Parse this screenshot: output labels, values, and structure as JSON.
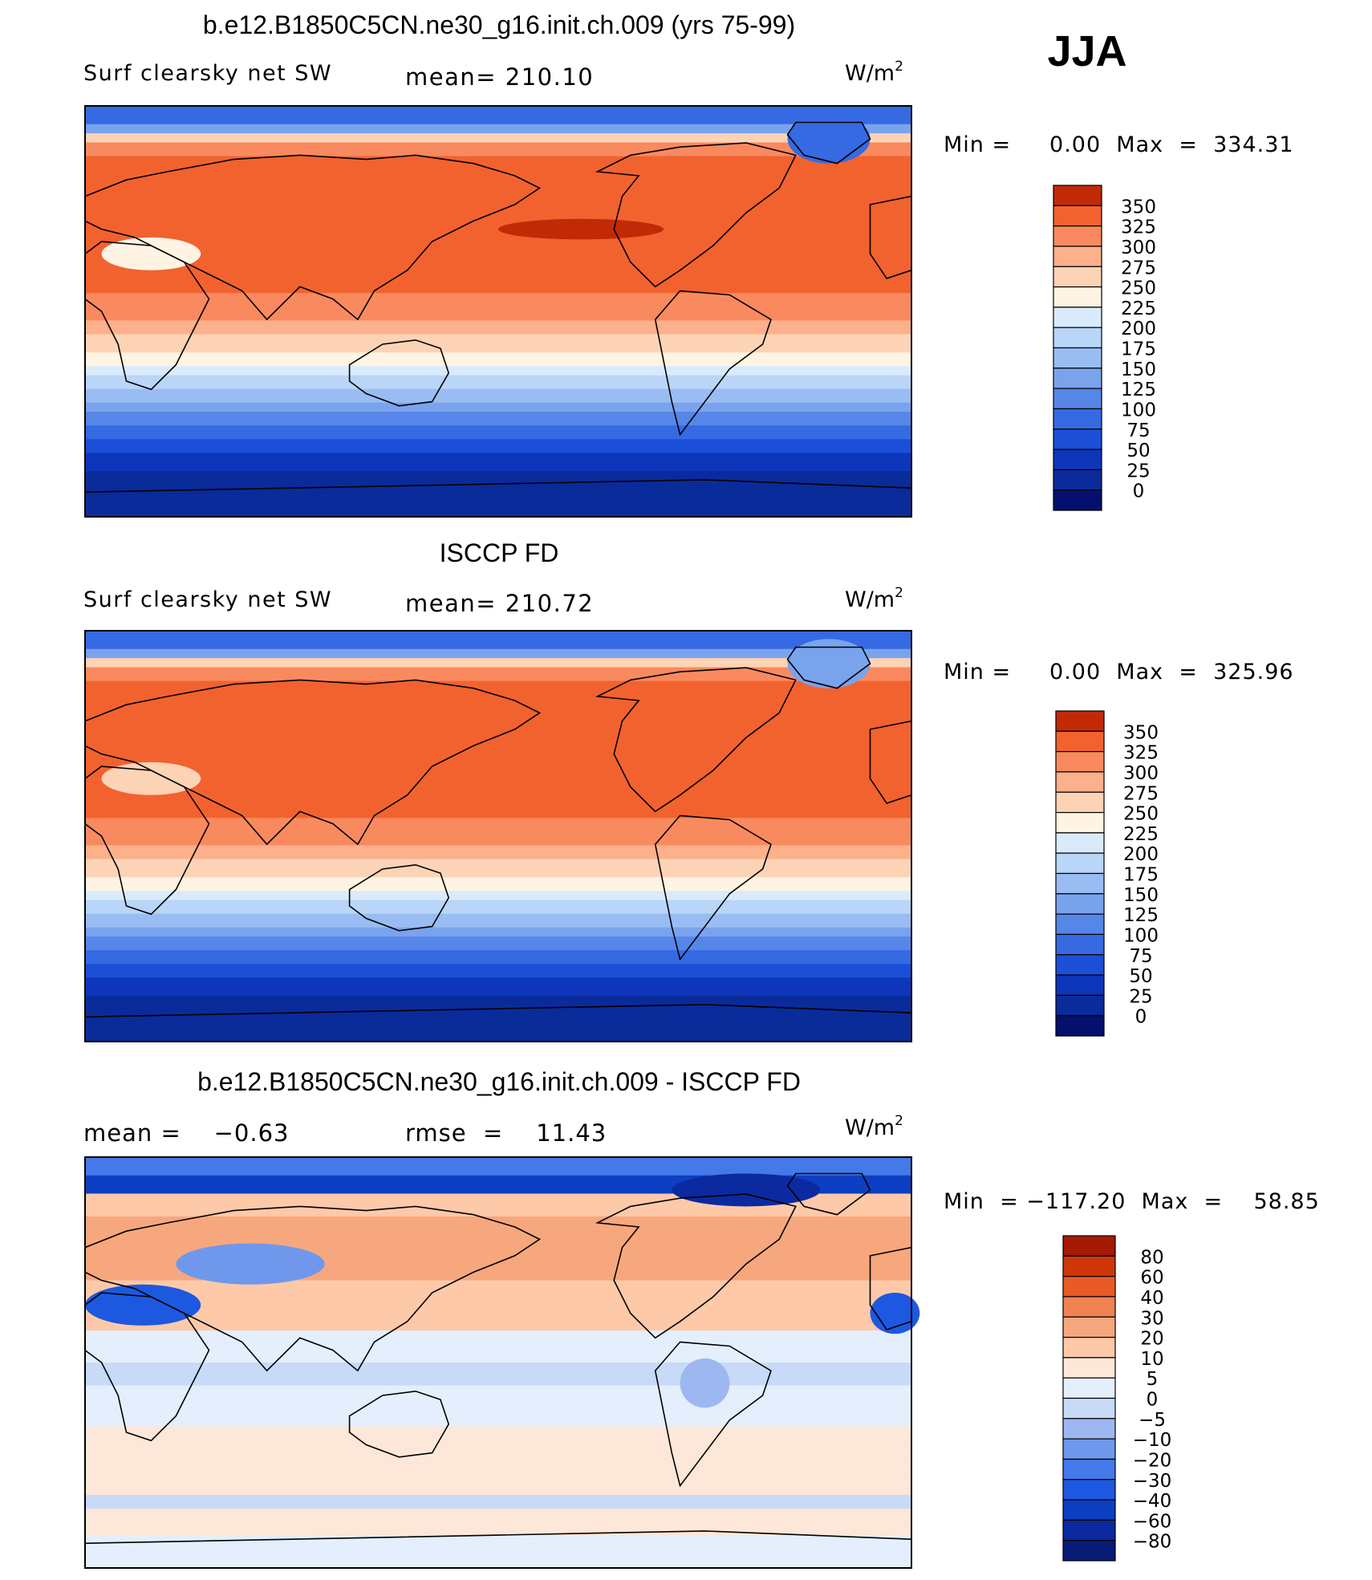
{
  "season": "JJA",
  "colors": {
    "warm": [
      "#fff3e3",
      "#fdd3b6",
      "#fcb08b",
      "#f98a5f",
      "#f2622f",
      "#e0400b",
      "#c22a06",
      "#9b1305",
      "#6f0000"
    ],
    "cool": [
      "#d9ebfb",
      "#b9d5f7",
      "#99bdf3",
      "#7aa3ee",
      "#5686e8",
      "#356ae3",
      "#1b4fd7",
      "#0d36bb",
      "#0a2b9a",
      "#050f6e"
    ],
    "diff": [
      "#081b76",
      "#0b2aa0",
      "#0d3fc3",
      "#1d58e1",
      "#4379e8",
      "#6f98ec",
      "#9db8f1",
      "#c7daf8",
      "#e4eefc",
      "#fde7d8",
      "#fdc9a9",
      "#f7a77d",
      "#f18352",
      "#e85b26",
      "#cf3708",
      "#a51a02",
      "#7d0000"
    ]
  },
  "chart_data": [
    {
      "type": "heatmap",
      "title": "b.e12.B1850C5CN.ne30_g16.init.ch.009 (yrs 75-99)",
      "left_label": "Surf clearsky net SW",
      "mean_text": "mean= 210.10",
      "units_text": "W/m",
      "units_sup": "2",
      "minmax_text": "Min =     0.00  Max  =  334.31",
      "min": 0.0,
      "max": 334.31,
      "mean": 210.1,
      "colorbar_levels": [
        "350",
        "325",
        "300",
        "275",
        "250",
        "225",
        "200",
        "175",
        "150",
        "125",
        "100",
        "75",
        "50",
        "25",
        "0"
      ],
      "colormap": "blue-white-red"
    },
    {
      "type": "heatmap",
      "title": "ISCCP FD",
      "left_label": "Surf clearsky net SW",
      "mean_text": "mean= 210.72",
      "units_text": "W/m",
      "units_sup": "2",
      "minmax_text": "Min =     0.00  Max  =  325.96",
      "min": 0.0,
      "max": 325.96,
      "mean": 210.72,
      "colorbar_levels": [
        "350",
        "325",
        "300",
        "275",
        "250",
        "225",
        "200",
        "175",
        "150",
        "125",
        "100",
        "75",
        "50",
        "25",
        "0"
      ],
      "colormap": "blue-white-red"
    },
    {
      "type": "heatmap",
      "title": "b.e12.B1850C5CN.ne30_g16.init.ch.009 - ISCCP FD",
      "left_label": "mean =    −0.63",
      "mean_text": "rmse  =    11.43",
      "units_text": "W/m",
      "units_sup": "2",
      "minmax_text": "Min  = −117.20  Max  =    58.85",
      "min": -117.2,
      "max": 58.85,
      "mean": -0.63,
      "rmse": 11.43,
      "colorbar_levels": [
        "80",
        "60",
        "40",
        "30",
        "20",
        "10",
        "5",
        "0",
        "−5",
        "−10",
        "−20",
        "−30",
        "−40",
        "−60",
        "−80"
      ],
      "colormap": "blue-white-red (difference)"
    }
  ]
}
